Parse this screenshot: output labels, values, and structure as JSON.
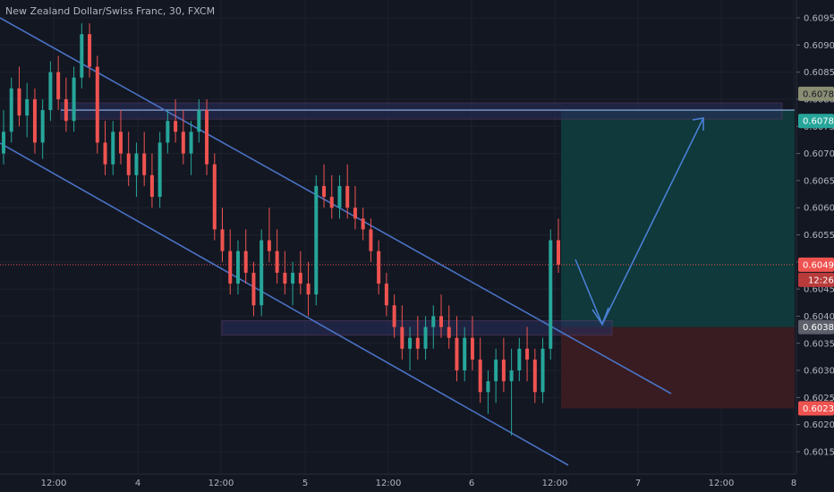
{
  "header": {
    "title": "New Zealand Dollar/Swiss Franc, 30, FXCM"
  },
  "colors": {
    "background": "#131722",
    "grid": "#1e222d",
    "text": "#b2b5be",
    "up_candle": "#26a69a",
    "down_candle": "#ef5350",
    "channel_line": "#4a72c4",
    "zone_fill": "#2a2e5a",
    "target_fill": "#0f3b3c",
    "stop_fill": "#3a1c22",
    "arrow": "#4a7fd4",
    "current_price_tag": "#ef5350",
    "target_tag": "#26a69a",
    "stop_tag": "#ef5350",
    "entry_tag": "#5d606b",
    "zone_tag": "#8a8e72"
  },
  "chart_data": {
    "type": "candlestick",
    "y_axis": {
      "ylim": [
        0.6012,
        0.6098
      ],
      "ticks": [
        "0.60950",
        "0.60900",
        "0.60850",
        "0.60800",
        "0.60750",
        "0.60700",
        "0.60650",
        "0.60600",
        "0.60550",
        "0.60500",
        "0.60450",
        "0.60400",
        "0.60350",
        "0.60300",
        "0.60250",
        "0.60200",
        "0.60150"
      ]
    },
    "x_axis": {
      "ticks": [
        "12:00",
        "4",
        "12:00",
        "5",
        "12:00",
        "6",
        "12:00",
        "7",
        "12:00",
        "8"
      ]
    },
    "price_tags": {
      "zone_level": "0.60780",
      "target": "0.60780",
      "current_price": "0.60495",
      "countdown": "12:26",
      "entry": "0.60380",
      "stop": "0.60230"
    },
    "trade_setup": {
      "entry": 0.6038,
      "target": 0.6078,
      "stop": 0.6023,
      "current": 0.60495
    },
    "support_zone": [
      0.6037,
      0.6039
    ],
    "resistance_zone": [
      0.6077,
      0.6079
    ],
    "candles": [
      [
        0.607,
        0.6078,
        0.6068,
        0.6074
      ],
      [
        0.6074,
        0.6084,
        0.6072,
        0.6082
      ],
      [
        0.6082,
        0.6086,
        0.6075,
        0.6077
      ],
      [
        0.6077,
        0.6083,
        0.6073,
        0.608
      ],
      [
        0.608,
        0.6082,
        0.607,
        0.6072
      ],
      [
        0.6072,
        0.608,
        0.6069,
        0.6078
      ],
      [
        0.6078,
        0.6087,
        0.6076,
        0.6085
      ],
      [
        0.6085,
        0.6088,
        0.6078,
        0.608
      ],
      [
        0.608,
        0.6084,
        0.6074,
        0.6076
      ],
      [
        0.6076,
        0.6086,
        0.6074,
        0.6084
      ],
      [
        0.6084,
        0.6094,
        0.6082,
        0.6092
      ],
      [
        0.6092,
        0.6094,
        0.6084,
        0.6086
      ],
      [
        0.6086,
        0.6088,
        0.607,
        0.6072
      ],
      [
        0.6072,
        0.6076,
        0.6066,
        0.6068
      ],
      [
        0.6068,
        0.6076,
        0.6066,
        0.6074
      ],
      [
        0.6074,
        0.6078,
        0.6068,
        0.607
      ],
      [
        0.607,
        0.6074,
        0.6064,
        0.6066
      ],
      [
        0.6066,
        0.6072,
        0.6062,
        0.607
      ],
      [
        0.607,
        0.6074,
        0.6064,
        0.6066
      ],
      [
        0.6066,
        0.607,
        0.606,
        0.6062
      ],
      [
        0.6062,
        0.6074,
        0.606,
        0.6072
      ],
      [
        0.6072,
        0.6078,
        0.607,
        0.6076
      ],
      [
        0.6076,
        0.608,
        0.6072,
        0.6074
      ],
      [
        0.6074,
        0.6078,
        0.6068,
        0.607
      ],
      [
        0.607,
        0.6076,
        0.6066,
        0.6074
      ],
      [
        0.6074,
        0.608,
        0.6072,
        0.6078
      ],
      [
        0.6078,
        0.608,
        0.6066,
        0.6068
      ],
      [
        0.6068,
        0.607,
        0.6054,
        0.6056
      ],
      [
        0.6056,
        0.606,
        0.605,
        0.6052
      ],
      [
        0.6052,
        0.6056,
        0.6044,
        0.6046
      ],
      [
        0.6046,
        0.6054,
        0.6044,
        0.6052
      ],
      [
        0.6052,
        0.6056,
        0.6046,
        0.6048
      ],
      [
        0.6048,
        0.605,
        0.604,
        0.6042
      ],
      [
        0.6042,
        0.6056,
        0.604,
        0.6054
      ],
      [
        0.6054,
        0.606,
        0.605,
        0.6052
      ],
      [
        0.6052,
        0.6056,
        0.6046,
        0.6048
      ],
      [
        0.6048,
        0.6052,
        0.6044,
        0.6046
      ],
      [
        0.6046,
        0.605,
        0.6042,
        0.6048
      ],
      [
        0.6048,
        0.6052,
        0.6044,
        0.6046
      ],
      [
        0.6046,
        0.605,
        0.604,
        0.6044
      ],
      [
        0.6044,
        0.6066,
        0.6042,
        0.6064
      ],
      [
        0.6064,
        0.6068,
        0.606,
        0.6062
      ],
      [
        0.6062,
        0.6066,
        0.6058,
        0.606
      ],
      [
        0.606,
        0.6066,
        0.6058,
        0.6064
      ],
      [
        0.6064,
        0.6068,
        0.6058,
        0.606
      ],
      [
        0.606,
        0.6064,
        0.6056,
        0.6058
      ],
      [
        0.6058,
        0.606,
        0.6054,
        0.6056
      ],
      [
        0.6056,
        0.6058,
        0.605,
        0.6052
      ],
      [
        0.6052,
        0.6054,
        0.6044,
        0.6046
      ],
      [
        0.6046,
        0.6048,
        0.604,
        0.6042
      ],
      [
        0.6042,
        0.6044,
        0.6036,
        0.6038
      ],
      [
        0.6038,
        0.6042,
        0.6032,
        0.6034
      ],
      [
        0.6034,
        0.6038,
        0.603,
        0.6036
      ],
      [
        0.6036,
        0.604,
        0.6032,
        0.6034
      ],
      [
        0.6034,
        0.604,
        0.6032,
        0.6038
      ],
      [
        0.6038,
        0.6042,
        0.6034,
        0.604
      ],
      [
        0.604,
        0.6044,
        0.6036,
        0.6038
      ],
      [
        0.6038,
        0.6042,
        0.6034,
        0.6036
      ],
      [
        0.6036,
        0.604,
        0.6028,
        0.603
      ],
      [
        0.603,
        0.6038,
        0.6028,
        0.6036
      ],
      [
        0.6036,
        0.604,
        0.603,
        0.6032
      ],
      [
        0.6032,
        0.6036,
        0.6024,
        0.6026
      ],
      [
        0.6026,
        0.603,
        0.6022,
        0.6028
      ],
      [
        0.6028,
        0.6034,
        0.6024,
        0.6032
      ],
      [
        0.6032,
        0.6036,
        0.6026,
        0.6028
      ],
      [
        0.6028,
        0.6034,
        0.6018,
        0.603
      ],
      [
        0.603,
        0.6036,
        0.6028,
        0.6034
      ],
      [
        0.6034,
        0.6038,
        0.6028,
        0.6032
      ],
      [
        0.6032,
        0.6034,
        0.6024,
        0.6026
      ],
      [
        0.6026,
        0.6036,
        0.6024,
        0.6034
      ],
      [
        0.6034,
        0.6056,
        0.6032,
        0.6054
      ],
      [
        0.6054,
        0.6058,
        0.6048,
        0.60495
      ]
    ]
  }
}
